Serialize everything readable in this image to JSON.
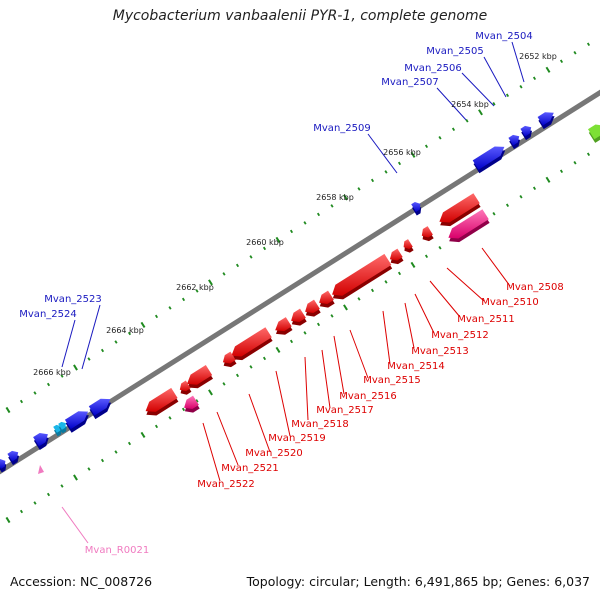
{
  "title": "Mycobacterium vanbaalenii PYR-1, complete genome",
  "accession": "Accession: NC_008726",
  "topology": "Topology: circular; Length: 6,491,865 bp; Genes: 6,037",
  "colors": {
    "forward_gene": "#0a0ae0",
    "reverse_gene": "#ee0a0a",
    "reverse_pink": "#ee1888",
    "rna": "#f07ac0",
    "green_gene": "#7de035",
    "backbone": "#777777",
    "tick": "#1f8a1f"
  },
  "position_labels": [
    "2652 kbp",
    "2654 kbp",
    "2656 kbp",
    "2658 kbp",
    "2660 kbp",
    "2662 kbp",
    "2664 kbp",
    "2666 kbp"
  ],
  "top_genes": [
    "Mvan_2504",
    "Mvan_2505",
    "Mvan_2506",
    "Mvan_2507",
    "Mvan_2509",
    "Mvan_2523",
    "Mvan_2524"
  ],
  "bottom_genes": [
    "Mvan_2508",
    "Mvan_2510",
    "Mvan_2511",
    "Mvan_2512",
    "Mvan_2513",
    "Mvan_2514",
    "Mvan_2515",
    "Mvan_2516",
    "Mvan_2517",
    "Mvan_2518",
    "Mvan_2519",
    "Mvan_2520",
    "Mvan_2521",
    "Mvan_2522"
  ],
  "rna_gene": "Mvan_R0021"
}
